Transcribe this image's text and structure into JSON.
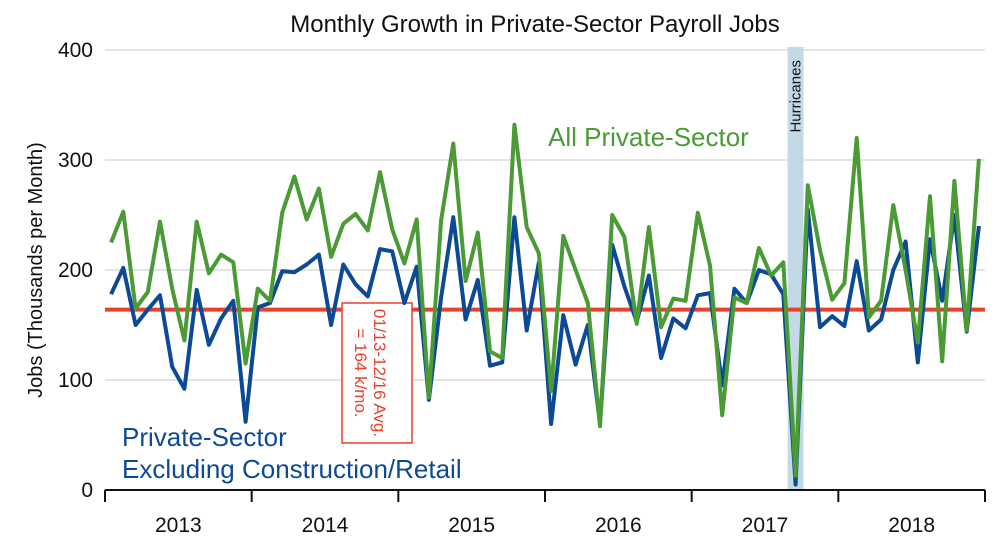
{
  "chart_data": {
    "type": "line",
    "title": "Monthly Growth in Private-Sector Payroll Jobs",
    "ylabel": "Jobs (Thousands per Month)",
    "xlabel": "",
    "ylim": [
      0,
      400
    ],
    "yticks": [
      0,
      100,
      200,
      300,
      400
    ],
    "year_labels": [
      "2013",
      "2014",
      "2015",
      "2016",
      "2017",
      "2018"
    ],
    "x_start": "2013-01",
    "months": 72,
    "series": [
      {
        "name": "All Private-Sector",
        "color": "#4a9a35",
        "values": [
          225,
          253,
          165,
          180,
          244,
          183,
          136,
          244,
          197,
          214,
          207,
          115,
          183,
          172,
          252,
          285,
          246,
          274,
          212,
          242,
          251,
          236,
          289,
          237,
          206,
          246,
          84,
          245,
          315,
          190,
          234,
          126,
          120,
          332,
          239,
          215,
          90,
          231,
          200,
          170,
          58,
          250,
          230,
          151,
          239,
          148,
          174,
          172,
          252,
          204,
          68,
          175,
          170,
          220,
          195,
          207,
          13,
          277,
          218,
          173,
          188,
          320,
          157,
          172,
          259,
          200,
          134,
          267,
          117,
          281,
          145,
          301
        ]
      },
      {
        "name": "Private-Sector Excluding Construction/Retail",
        "color": "#0c4a96",
        "values": [
          178,
          202,
          150,
          164,
          177,
          112,
          92,
          182,
          132,
          156,
          172,
          62,
          166,
          170,
          199,
          198,
          205,
          214,
          150,
          205,
          187,
          176,
          219,
          217,
          170,
          203,
          82,
          175,
          248,
          155,
          191,
          113,
          116,
          248,
          145,
          207,
          60,
          159,
          114,
          150,
          60,
          223,
          185,
          153,
          195,
          120,
          156,
          147,
          177,
          179,
          95,
          183,
          170,
          200,
          196,
          178,
          5,
          255,
          148,
          158,
          149,
          208,
          145,
          155,
          200,
          226,
          116,
          228,
          172,
          250,
          144,
          240
        ]
      }
    ],
    "average_line": {
      "value": 164,
      "color": "#e8412c",
      "label_line1": "01/13-12/16 Avg.",
      "label_line2": "= 164 k/mo."
    },
    "annotations": {
      "hurricanes": "Hurricanes",
      "all_private_label": "All Private-Sector",
      "excl_label_line1": "Private-Sector",
      "excl_label_line2": "Excluding Construction/Retail"
    },
    "grid": true,
    "legend": "inline labels"
  }
}
